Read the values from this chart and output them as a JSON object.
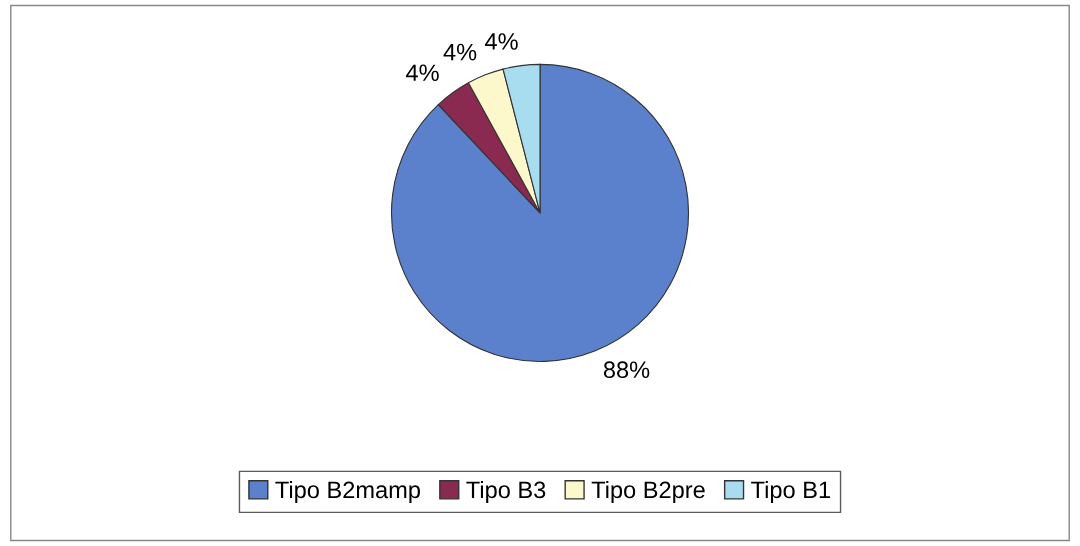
{
  "chart_data": {
    "type": "pie",
    "categories": [
      "Tipo B2mamp",
      "Tipo B3",
      "Tipo B2pre",
      "Tipo B1"
    ],
    "values": [
      88,
      4,
      4,
      4
    ],
    "colors": [
      "#5b80cc",
      "#8b2a50",
      "#fdf8cc",
      "#a8dcef"
    ],
    "value_labels": [
      "88%",
      "4%",
      "4%",
      "4%"
    ],
    "legend": "bottom"
  }
}
